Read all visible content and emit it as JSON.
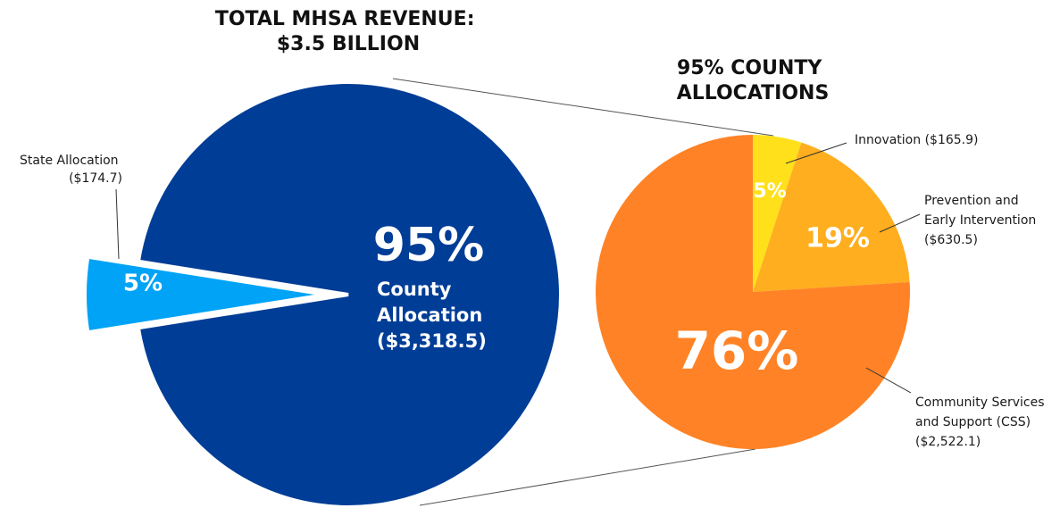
{
  "chart_data": [
    {
      "type": "pie",
      "title": "TOTAL MHSA REVENUE: $3.5 BILLION",
      "categories": [
        "State Allocation ($174.7)",
        "County Allocation ($3,318.5)"
      ],
      "values": [
        5,
        95
      ],
      "value_labels": [
        "5%",
        "95%"
      ],
      "colors": [
        "#00a3f5",
        "#003d96"
      ]
    },
    {
      "type": "pie",
      "title": "95% COUNTY ALLOCATIONS",
      "categories": [
        "Innovation ($165.9)",
        "Prevention and Early Intervention ($630.5)",
        "Community Services and Support (CSS) ($2,522.1)"
      ],
      "values": [
        5,
        19,
        76
      ],
      "value_labels": [
        "5%",
        "19%",
        "76%"
      ],
      "colors": [
        "#ffe01a",
        "#ffae1f",
        "#ff8326"
      ]
    }
  ]
}
